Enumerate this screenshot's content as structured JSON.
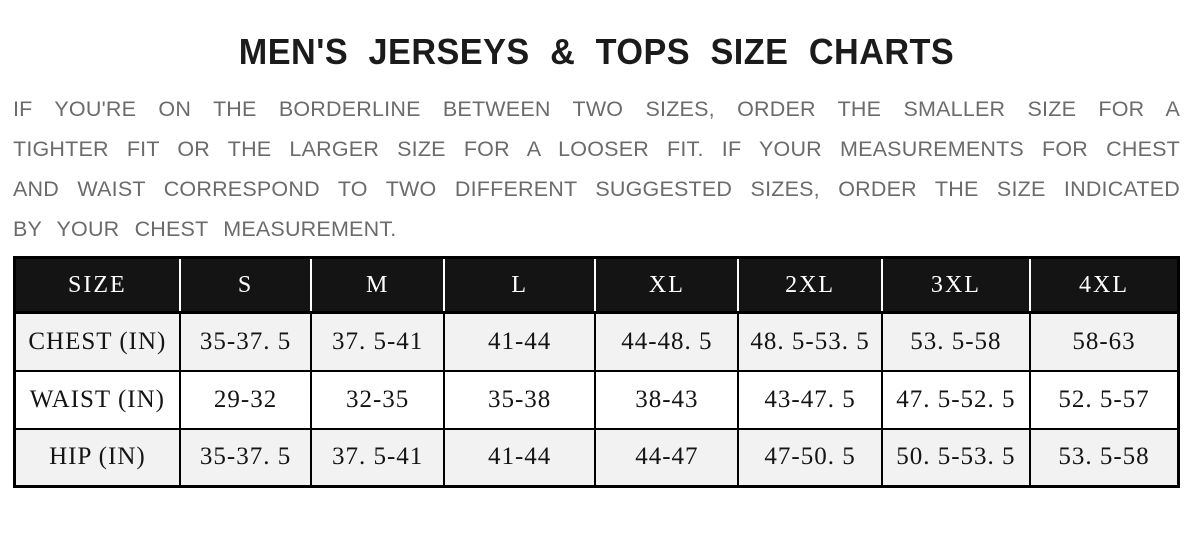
{
  "header": {
    "title": "MEN'S JERSEYS & TOPS SIZE CHARTS"
  },
  "intro": {
    "lines": [
      "IF YOU'RE ON THE BORDERLINE BETWEEN TWO SIZES, ORDER THE SMALLER SIZE FOR A",
      "TIGHTER FIT OR THE LARGER SIZE FOR A LOOSER FIT. IF YOUR MEASUREMENTS FOR CHEST",
      "AND WAIST CORRESPOND TO TWO DIFFERENT SUGGESTED SIZES, ORDER THE SIZE INDICATED",
      "BY YOUR CHEST MEASUREMENT."
    ]
  },
  "size_chart": {
    "headers": [
      "SIZE",
      "S",
      "M",
      "L",
      "XL",
      "2XL",
      "3XL",
      "4XL"
    ],
    "rows": [
      {
        "label": "CHEST (IN)",
        "values": [
          "35-37. 5",
          "37. 5-41",
          "41-44",
          "44-48. 5",
          "48. 5-53. 5",
          "53. 5-58",
          "58-63"
        ]
      },
      {
        "label": "WAIST (IN)",
        "values": [
          "29-32",
          "32-35",
          "35-38",
          "38-43",
          "43-47. 5",
          "47. 5-52. 5",
          "52. 5-57"
        ]
      },
      {
        "label": "HIP (IN)",
        "values": [
          "35-37. 5",
          "37. 5-41",
          "41-44",
          "44-47",
          "47-50. 5",
          "50. 5-53. 5",
          "53. 5-58"
        ]
      }
    ]
  },
  "colors": {
    "header_bg": "#141414",
    "header_text": "#ffffff",
    "row_alt_bg": "#f2f2f2",
    "row_bg": "#ffffff",
    "table_border": "#000000",
    "intro_text": "#6b6b6b",
    "title_text": "#1b1b1b"
  }
}
